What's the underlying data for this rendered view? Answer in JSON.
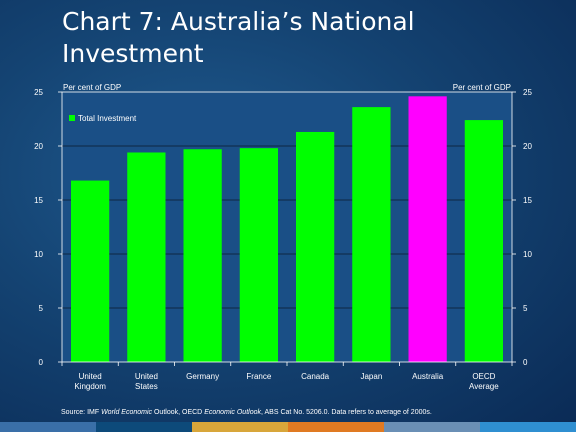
{
  "slide": {
    "title": "Chart 7: Australia’s National Investment"
  },
  "chart_data": {
    "type": "bar",
    "categories": [
      [
        "United",
        "Kingdom"
      ],
      [
        "United",
        "States"
      ],
      [
        "Germany"
      ],
      [
        "France"
      ],
      [
        "Canada"
      ],
      [
        "Japan"
      ],
      [
        "Australia"
      ],
      [
        "OECD",
        "Average"
      ]
    ],
    "series": [
      {
        "name": "Total Investment",
        "values": [
          16.8,
          19.4,
          19.7,
          19.8,
          21.3,
          23.6,
          24.6,
          22.4
        ]
      }
    ],
    "highlight_category": "Australia",
    "colors": {
      "bar": "#00ff00",
      "highlight": "#ff00ff",
      "axis": "#ffffff",
      "plot_background": "#1a4f86"
    },
    "y_unit_left": "Per cent of GDP",
    "y_unit_right": "Per cent of GDP",
    "ylim": [
      0,
      25
    ],
    "yticks": [
      0,
      5,
      10,
      15,
      20,
      25
    ],
    "grid": true,
    "legend": "top-left",
    "secondary_y_axis": true
  },
  "source": {
    "prefix": "Source: IMF ",
    "title1": "World Economic",
    "mid1": " Outlook, OECD ",
    "title2": "Economic Outlook",
    "suffix": ", ABS Cat No. 5206.0. Data refers to average of 2000s."
  },
  "footer": {
    "colors": [
      "#3a6fa8",
      "#0d4a7a",
      "#d8a63a",
      "#e07a22",
      "#6a8fb5",
      "#2f8fd1"
    ]
  }
}
